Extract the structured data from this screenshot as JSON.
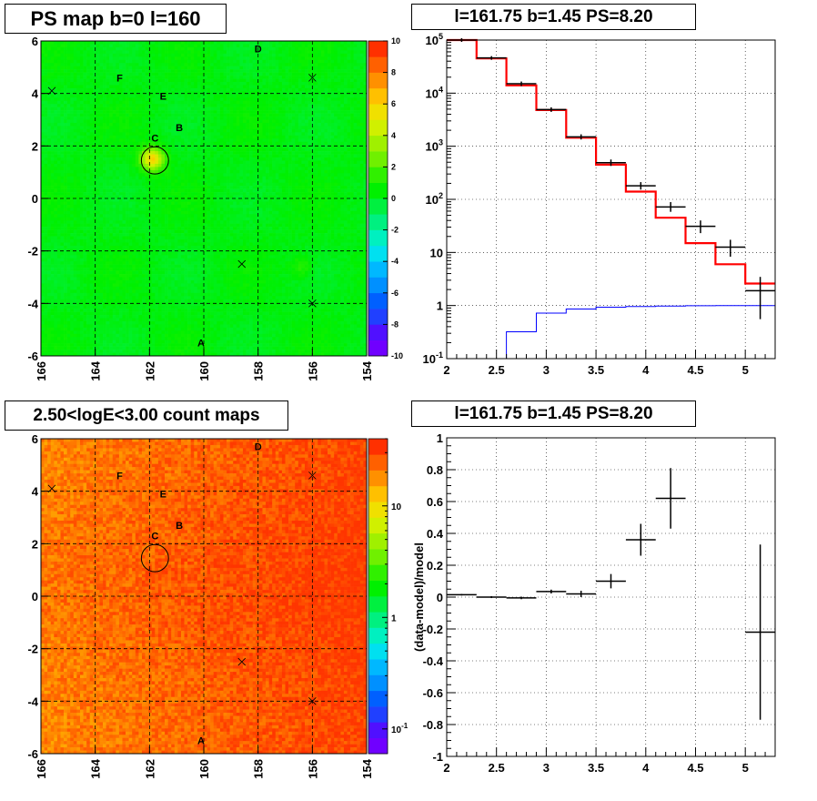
{
  "chart_data": [
    {
      "id": "ps_map",
      "type": "heatmap",
      "title": "PS map b=0 l=160",
      "x_ticks": [
        "166",
        "164",
        "162",
        "160",
        "158",
        "156",
        "154"
      ],
      "y_ticks": [
        "6",
        "4",
        "2",
        "0",
        "-2",
        "-4",
        "-6"
      ],
      "xlim": [
        166,
        154
      ],
      "ylim": [
        -6,
        6
      ],
      "colorbar": {
        "scale": "linear",
        "range": [
          -10,
          10
        ],
        "ticks": [
          "10",
          "8",
          "6",
          "4",
          "2",
          "0",
          "-2",
          "-4",
          "-6",
          "-8",
          "-10"
        ],
        "colors": [
          "#7000ff",
          "#5010ff",
          "#2040ff",
          "#0060ff",
          "#0090ff",
          "#00b8ff",
          "#00e0f0",
          "#00f0c0",
          "#00f080",
          "#00f040",
          "#00f000",
          "#30f000",
          "#70f000",
          "#a0f000",
          "#d0f000",
          "#f0e000",
          "#ffc000",
          "#ff9000",
          "#ff6000",
          "#ff3000"
        ]
      },
      "background_color": "#33ee33",
      "hotspot": {
        "l": 161.9,
        "b": 1.5,
        "value": 6
      },
      "sources": [
        {
          "label": "A",
          "l": 160.1,
          "b": -5.5
        },
        {
          "label": "B",
          "l": 160.9,
          "b": 2.7
        },
        {
          "label": "C",
          "l": 161.8,
          "b": 2.3
        },
        {
          "label": "D",
          "l": 158.0,
          "b": 5.7
        },
        {
          "label": "E",
          "l": 161.5,
          "b": 3.9
        },
        {
          "label": "F",
          "l": 163.1,
          "b": 4.6
        }
      ],
      "crosses": [
        {
          "l": 165.6,
          "b": 4.1
        },
        {
          "l": 156.0,
          "b": 4.6
        },
        {
          "l": 158.6,
          "b": -2.5
        },
        {
          "l": 156.0,
          "b": -4.0
        }
      ],
      "circle": {
        "l": 161.8,
        "b": 1.45,
        "radius_deg": 0.5
      }
    },
    {
      "id": "spectrum",
      "type": "line",
      "title": "l=161.75 b=1.45 PS=8.20",
      "xlim": [
        2,
        5.3
      ],
      "ylim_log": [
        0.1,
        100000
      ],
      "x_ticks": [
        "2",
        "2.5",
        "3",
        "3.5",
        "4",
        "4.5",
        "5"
      ],
      "y_ticks": [
        "10^-1",
        "1",
        "10",
        "10^2",
        "10^3",
        "10^4",
        "10^5"
      ],
      "bin_edges": [
        2.0,
        2.3,
        2.6,
        2.9,
        3.2,
        3.5,
        3.8,
        4.1,
        4.4,
        4.7,
        5.0,
        5.3
      ],
      "series": [
        {
          "role": "model",
          "color": "#ff0000",
          "values": [
            100000,
            45000,
            14000,
            4800,
            1450,
            450,
            140,
            45,
            15,
            6,
            2.6
          ]
        },
        {
          "role": "background",
          "color": "#0000ff",
          "values": [
            0.1,
            0.1,
            0.32,
            0.72,
            0.86,
            0.93,
            0.96,
            0.98,
            0.99,
            1.0,
            1.0
          ]
        }
      ],
      "data_points": [
        {
          "x": 2.15,
          "y": 100000,
          "xerr": 0.15,
          "ylo": 100000,
          "yhi": 100000
        },
        {
          "x": 2.45,
          "y": 46000,
          "xerr": 0.15,
          "ylo": 46000,
          "yhi": 46000
        },
        {
          "x": 2.75,
          "y": 15000,
          "xerr": 0.15,
          "ylo": 14700,
          "yhi": 15300
        },
        {
          "x": 3.05,
          "y": 4900,
          "xerr": 0.15,
          "ylo": 4800,
          "yhi": 5000
        },
        {
          "x": 3.35,
          "y": 1500,
          "xerr": 0.15,
          "ylo": 1450,
          "yhi": 1550
        },
        {
          "x": 3.65,
          "y": 490,
          "xerr": 0.15,
          "ylo": 460,
          "yhi": 520
        },
        {
          "x": 3.95,
          "y": 180,
          "xerr": 0.15,
          "ylo": 165,
          "yhi": 195
        },
        {
          "x": 4.25,
          "y": 72,
          "xerr": 0.15,
          "ylo": 63,
          "yhi": 82
        },
        {
          "x": 4.55,
          "y": 31,
          "xerr": 0.15,
          "ylo": 25,
          "yhi": 37
        },
        {
          "x": 4.85,
          "y": 12.6,
          "xerr": 0.15,
          "ylo": 9,
          "yhi": 16
        },
        {
          "x": 5.15,
          "y": 1.9,
          "xerr": 0.15,
          "ylo": 0.6,
          "yhi": 3.2
        }
      ]
    },
    {
      "id": "count_map",
      "type": "heatmap",
      "title": "2.50<logE<3.00 count maps",
      "x_ticks": [
        "166",
        "164",
        "162",
        "160",
        "158",
        "156",
        "154"
      ],
      "y_ticks": [
        "6",
        "4",
        "2",
        "0",
        "-2",
        "-4",
        "-6"
      ],
      "xlim": [
        166,
        154
      ],
      "ylim": [
        -6,
        6
      ],
      "colorbar": {
        "scale": "log",
        "range": [
          0.06,
          40
        ],
        "ticks": [
          {
            "label": "10",
            "value": 10
          },
          {
            "label": "1",
            "value": 1
          },
          {
            "label": "10^-1",
            "value": 0.1
          }
        ],
        "colors": [
          "#7000ff",
          "#5010ff",
          "#2040ff",
          "#0060ff",
          "#0090ff",
          "#00b8ff",
          "#00e0f0",
          "#00f0c0",
          "#00f080",
          "#00f040",
          "#00f000",
          "#30f000",
          "#70f000",
          "#a0f000",
          "#d0f000",
          "#f0e000",
          "#ffc000",
          "#ff9000",
          "#ff6000",
          "#ff3000"
        ]
      },
      "sources": [
        {
          "label": "A",
          "l": 160.1,
          "b": -5.5
        },
        {
          "label": "B",
          "l": 160.9,
          "b": 2.7
        },
        {
          "label": "C",
          "l": 161.8,
          "b": 2.3
        },
        {
          "label": "D",
          "l": 158.0,
          "b": 5.7
        },
        {
          "label": "E",
          "l": 161.5,
          "b": 3.9
        },
        {
          "label": "F",
          "l": 163.1,
          "b": 4.6
        }
      ],
      "crosses": [
        {
          "l": 165.6,
          "b": 4.1
        },
        {
          "l": 156.0,
          "b": 4.6
        },
        {
          "l": 158.6,
          "b": -2.5
        },
        {
          "l": 156.0,
          "b": -4.0
        }
      ],
      "circle": {
        "l": 161.8,
        "b": 1.45,
        "radius_deg": 0.5
      }
    },
    {
      "id": "residuals",
      "type": "scatter",
      "title": "l=161.75 b=1.45 PS=8.20",
      "ylabel": "(data-model)/model",
      "xlim": [
        2,
        5.3
      ],
      "ylim": [
        -1,
        1
      ],
      "x_ticks": [
        "2",
        "2.5",
        "3",
        "3.5",
        "4",
        "4.5",
        "5"
      ],
      "y_ticks": [
        "1",
        "0.8",
        "0.6",
        "0.4",
        "0.2",
        "0",
        "-0.2",
        "-0.4",
        "-0.6",
        "-0.8",
        "-1"
      ],
      "data_points": [
        {
          "x": 2.15,
          "y": 0.015,
          "xerr": 0.15,
          "yerr": 0.005
        },
        {
          "x": 2.45,
          "y": 0.0,
          "xerr": 0.15,
          "yerr": 0.006
        },
        {
          "x": 2.75,
          "y": -0.005,
          "xerr": 0.15,
          "yerr": 0.008
        },
        {
          "x": 3.05,
          "y": 0.035,
          "xerr": 0.15,
          "yerr": 0.012
        },
        {
          "x": 3.35,
          "y": 0.02,
          "xerr": 0.15,
          "yerr": 0.02
        },
        {
          "x": 3.65,
          "y": 0.1,
          "xerr": 0.15,
          "yerr": 0.045
        },
        {
          "x": 3.95,
          "y": 0.36,
          "xerr": 0.15,
          "yerr": 0.1
        },
        {
          "x": 4.25,
          "y": 0.62,
          "xerr": 0.15,
          "yerr": 0.19
        },
        {
          "x": 5.15,
          "y": -0.22,
          "xerr": 0.15,
          "yerr": 0.55
        }
      ]
    }
  ]
}
